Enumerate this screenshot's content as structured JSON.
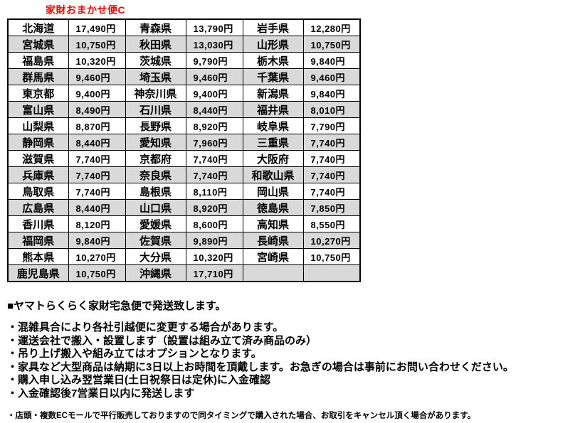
{
  "title": "家財おまかせ便C",
  "accent_color": "#ff0000",
  "table": {
    "stripe_color": "#d9d9d9",
    "columns": [
      "prefecture",
      "price",
      "prefecture",
      "price",
      "prefecture",
      "price"
    ],
    "rows": [
      [
        "北海道",
        "17,490円",
        "青森県",
        "13,790円",
        "岩手県",
        "12,280円"
      ],
      [
        "宮城県",
        "10,750円",
        "秋田県",
        "13,030円",
        "山形県",
        "10,750円"
      ],
      [
        "福島県",
        "10,320円",
        "茨城県",
        "9,790円",
        "栃木県",
        "9,840円"
      ],
      [
        "群馬県",
        "9,460円",
        "埼玉県",
        "9,460円",
        "千葉県",
        "9,460円"
      ],
      [
        "東京都",
        "9,400円",
        "神奈川県",
        "9,400円",
        "新潟県",
        "9,840円"
      ],
      [
        "富山県",
        "8,490円",
        "石川県",
        "8,440円",
        "福井県",
        "8,010円"
      ],
      [
        "山梨県",
        "8,870円",
        "長野県",
        "8,920円",
        "岐阜県",
        "7,790円"
      ],
      [
        "静岡県",
        "8,440円",
        "愛知県",
        "7,960円",
        "三重県",
        "7,740円"
      ],
      [
        "滋賀県",
        "7,740円",
        "京都府",
        "7,740円",
        "大阪府",
        "7,740円"
      ],
      [
        "兵庫県",
        "7,740円",
        "奈良県",
        "7,740円",
        "和歌山県",
        "7,740円"
      ],
      [
        "鳥取県",
        "7,740円",
        "島根県",
        "8,110円",
        "岡山県",
        "7,740円"
      ],
      [
        "広島県",
        "8,440円",
        "山口県",
        "8,920円",
        "徳島県",
        "7,850円"
      ],
      [
        "香川県",
        "8,120円",
        "愛媛県",
        "8,600円",
        "高知県",
        "8,550円"
      ],
      [
        "福岡県",
        "9,840円",
        "佐賀県",
        "9,890円",
        "長崎県",
        "10,270円"
      ],
      [
        "熊本県",
        "10,270円",
        "大分県",
        "10,320円",
        "宮崎県",
        "10,750円"
      ],
      [
        "鹿児島県",
        "10,750円",
        "沖縄県",
        "17,710円",
        "",
        ""
      ]
    ]
  },
  "notes": {
    "heading": "■ヤマトらくらく家財宅急便で発送致します。",
    "bullets": [
      "・混雑具合により各社引越便に変更する場合があります。",
      "・運送会社で搬入・設置します（設置は組み立て済み商品のみ）",
      "・吊り上げ搬入や組み立てはオプションとなります。",
      "・家具など大型商品は納期に3日以上お時間を頂戴します。お急ぎの場合は事前にお問い合わせください。",
      "・購入申し込み翌営業日(土日祝祭日は定休)に入金確認",
      "・入金確認後7営業日以内に発送します"
    ],
    "small_note": "・店頭・複数ECモールで平行販売しておりますので同タイミングで購入された場合、お取引をキャンセル頂く場合があります。"
  }
}
